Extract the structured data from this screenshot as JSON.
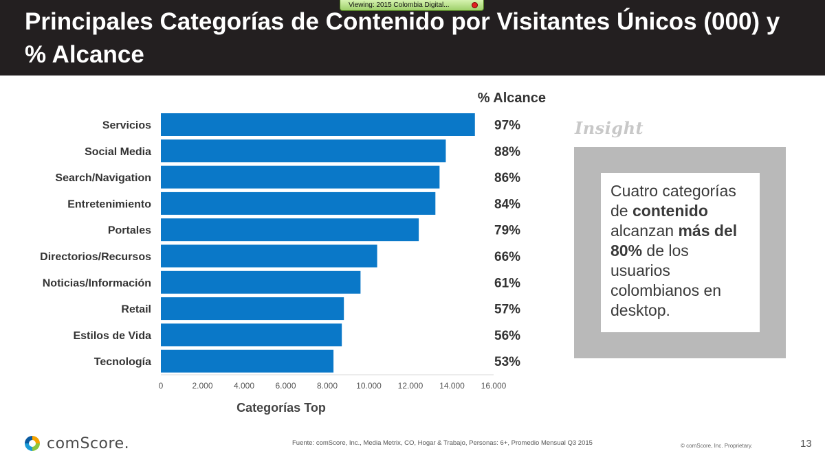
{
  "header": {
    "title": "Principales Categorías de Contenido por Visitantes Únicos (000) y % Alcance",
    "viewing_badge": "Viewing: 2015 Colombia Digital..."
  },
  "chart_data": {
    "type": "bar",
    "orientation": "horizontal",
    "categories": [
      "Servicios",
      "Social Media",
      "Search/Navigation",
      "Entretenimiento",
      "Portales",
      "Directorios/Recursos",
      "Noticias/Información",
      "Retail",
      "Estilos de Vida",
      "Tecnología"
    ],
    "values": [
      15100,
      13700,
      13400,
      13200,
      12400,
      10400,
      9600,
      8800,
      8700,
      8300
    ],
    "reach_header": "% Alcance",
    "reach_labels": [
      "97%",
      "88%",
      "86%",
      "84%",
      "79%",
      "66%",
      "61%",
      "57%",
      "56%",
      "53%"
    ],
    "xlabel": "Categorías Top",
    "ylabel": "",
    "xlim": [
      0,
      16000
    ],
    "x_ticks": [
      0,
      2000,
      4000,
      6000,
      8000,
      10000,
      12000,
      14000,
      16000
    ],
    "x_tick_labels": [
      "0",
      "2.000",
      "4.000",
      "6.000",
      "8.000",
      "10.000",
      "12.000",
      "14.000",
      "16.000"
    ],
    "bar_color": "#0a78c8",
    "grid": false,
    "legend": "none"
  },
  "insight": {
    "label": "Insight",
    "text_parts": [
      {
        "text": "Cuatro categorías de ",
        "bold": false
      },
      {
        "text": "contenido",
        "bold": true
      },
      {
        "text": " alcanzan ",
        "bold": false
      },
      {
        "text": "más del 80%",
        "bold": true
      },
      {
        "text": " de los usuarios colombianos en desktop.",
        "bold": false
      }
    ]
  },
  "footer": {
    "brand": "comScore.",
    "source": "Fuente: comScore, Inc., Media Metrix, CO, Hogar & Trabajo, Personas: 6+, Promedio Mensual Q3 2015",
    "copyright": "© comScore, Inc. Proprietary.",
    "page_number": "13"
  }
}
